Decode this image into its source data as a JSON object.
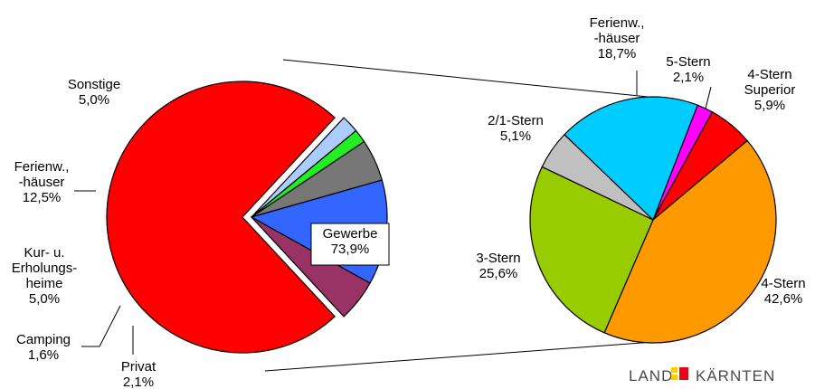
{
  "chart_data": [
    {
      "type": "pie",
      "title": "",
      "slices": [
        {
          "label_lines": [
            "Gewerbe",
            "73,9%"
          ],
          "value": 73.9,
          "color": "#ff0000",
          "exploded": true
        },
        {
          "label_lines": [
            "Privat",
            "2,1%"
          ],
          "value": 2.1,
          "color": "#aaccff"
        },
        {
          "label_lines": [
            "Camping",
            "1,6%"
          ],
          "value": 1.6,
          "color": "#22ee22"
        },
        {
          "label_lines": [
            "Kur- u.",
            "Erholungs-",
            "heime",
            "5,0%"
          ],
          "value": 5.0,
          "color": "#777777"
        },
        {
          "label_lines": [
            "Ferienw.,",
            "-häuser",
            "12,5%"
          ],
          "value": 12.5,
          "color": "#3366ff"
        },
        {
          "label_lines": [
            "Sonstige",
            "5,0%"
          ],
          "value": 5.0,
          "color": "#993366"
        }
      ]
    },
    {
      "type": "pie",
      "title": "",
      "breakdown_of": "Gewerbe",
      "slices": [
        {
          "label_lines": [
            "5-Stern",
            "2,1%"
          ],
          "value": 2.1,
          "color": "#ff00ff"
        },
        {
          "label_lines": [
            "4-Stern",
            "Superior",
            "5,9%"
          ],
          "value": 5.9,
          "color": "#ff0000"
        },
        {
          "label_lines": [
            "4-Stern",
            "42,6%"
          ],
          "value": 42.6,
          "color": "#ff9900"
        },
        {
          "label_lines": [
            "3-Stern",
            "25,6%"
          ],
          "value": 25.6,
          "color": "#99cc00"
        },
        {
          "label_lines": [
            "2/1-Stern",
            "5,1%"
          ],
          "value": 5.1,
          "color": "#c0c0c0"
        },
        {
          "label_lines": [
            "Ferienw.,",
            "-häuser",
            "18,7%"
          ],
          "value": 18.7,
          "color": "#00ccff"
        }
      ]
    }
  ],
  "logo": {
    "left_text": "LAND",
    "right_text": "KÄRNTEN",
    "colors": [
      "#ffcc00",
      "#e30613"
    ]
  }
}
